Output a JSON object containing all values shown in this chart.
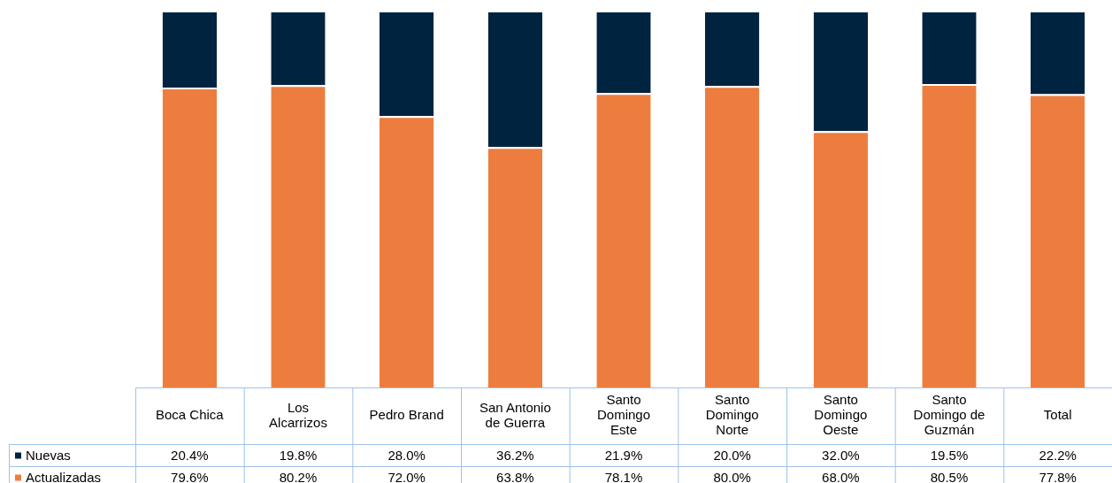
{
  "chart_data": {
    "type": "bar",
    "stacked": true,
    "legend": "bottom",
    "categories": [
      "Boca Chica",
      "Los Alcarrizos",
      "Pedro Brand",
      "San Antonio de Guerra",
      "Santo Domingo Este",
      "Santo Domingo Norte",
      "Santo Domingo Oeste",
      "Santo Domingo de Guzmán",
      "Total"
    ],
    "series": [
      {
        "name": "Actualizadas",
        "color": "#ed7d3f",
        "values": [
          79.6,
          80.2,
          72.0,
          63.8,
          78.1,
          80.0,
          68.0,
          80.5,
          77.8
        ],
        "value_labels": [
          "79.6%",
          "80.2%",
          "72.0%",
          "63.8%",
          "78.1%",
          "80.0%",
          "68.0%",
          "80.5%",
          "77.8%"
        ]
      },
      {
        "name": "Nuevas",
        "color": "#002340",
        "values": [
          20.4,
          19.8,
          28.0,
          36.2,
          21.9,
          20.0,
          32.0,
          19.5,
          22.2
        ],
        "value_labels": [
          "20.4%",
          "19.8%",
          "28.0%",
          "36.2%",
          "21.9%",
          "20.0%",
          "32.0%",
          "19.5%",
          "22.2%"
        ]
      }
    ]
  }
}
